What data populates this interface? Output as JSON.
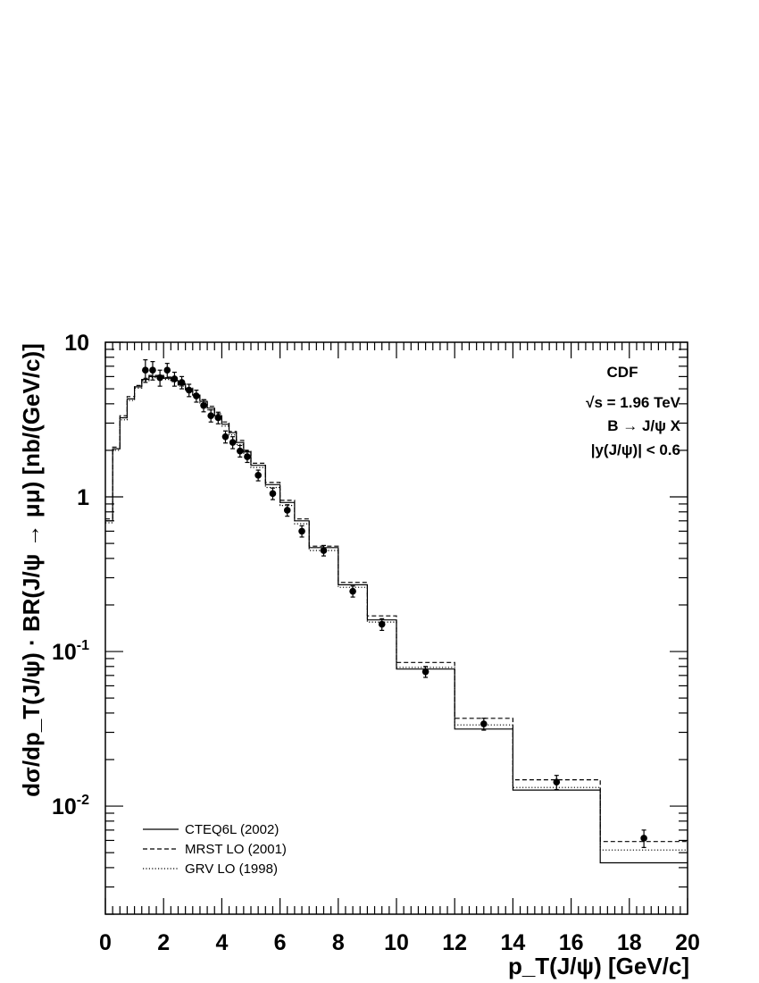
{
  "chart_data": {
    "type": "line",
    "xlabel": "p_T(J/ψ) [GeV/c]",
    "ylabel": "dσ/dp_T(J/ψ) · BR(J/ψ → μμ) [nb/(GeV/c)]",
    "xlim": [
      0,
      20
    ],
    "ylim": [
      0.002,
      10
    ],
    "yscale": "log",
    "x_ticks": [
      "0",
      "2",
      "4",
      "6",
      "8",
      "10",
      "12",
      "14",
      "16",
      "18",
      "20"
    ],
    "y_ticks": [
      {
        "value": 10,
        "base": "10",
        "exp": ""
      },
      {
        "value": 1,
        "base": "1",
        "exp": ""
      },
      {
        "value": 0.1,
        "base": "10",
        "exp": "-1"
      },
      {
        "value": 0.01,
        "base": "10",
        "exp": "-2"
      }
    ],
    "annotations": [
      "CDF",
      "√s = 1.96 TeV",
      "B → J/ψ X",
      "|y(J/ψ)| < 0.6"
    ],
    "bin_edges": [
      0,
      0.25,
      0.5,
      0.75,
      1.0,
      1.25,
      1.5,
      1.75,
      2.0,
      2.25,
      2.5,
      2.75,
      3.0,
      3.25,
      3.5,
      3.75,
      4.0,
      4.25,
      4.5,
      4.75,
      5.0,
      5.5,
      6.0,
      6.5,
      7.0,
      8.0,
      9.0,
      10.0,
      12.0,
      14.0,
      17.0,
      20.0
    ],
    "series": [
      {
        "name": "CTEQ6L (2002)",
        "style": "solid",
        "values": [
          0.7,
          2.05,
          3.25,
          4.3,
          5.15,
          5.75,
          6.0,
          6.0,
          5.85,
          5.65,
          5.3,
          4.95,
          4.55,
          4.15,
          3.75,
          3.35,
          2.95,
          2.6,
          2.25,
          1.95,
          1.6,
          1.2,
          0.92,
          0.7,
          0.47,
          0.27,
          0.16,
          0.077,
          0.0315,
          0.0127,
          0.0043
        ]
      },
      {
        "name": "MRST LO (2001)",
        "style": "dashed",
        "values": [
          0.72,
          2.1,
          3.35,
          4.45,
          5.25,
          5.85,
          6.1,
          6.1,
          5.95,
          5.75,
          5.4,
          5.05,
          4.65,
          4.25,
          3.85,
          3.45,
          3.05,
          2.65,
          2.32,
          2.0,
          1.65,
          1.24,
          0.95,
          0.72,
          0.48,
          0.28,
          0.17,
          0.085,
          0.037,
          0.0148,
          0.0059
        ]
      },
      {
        "name": "GRV LO (1998)",
        "style": "dotted",
        "values": [
          0.68,
          2.0,
          3.15,
          4.2,
          5.05,
          5.65,
          5.9,
          5.9,
          5.75,
          5.55,
          5.2,
          4.85,
          4.45,
          4.05,
          3.65,
          3.25,
          2.87,
          2.52,
          2.18,
          1.88,
          1.55,
          1.15,
          0.88,
          0.67,
          0.45,
          0.26,
          0.155,
          0.079,
          0.0335,
          0.0132,
          0.0052
        ]
      }
    ],
    "data_points": [
      {
        "x": 1.375,
        "y": 6.6,
        "err": 1.1
      },
      {
        "x": 1.625,
        "y": 6.6,
        "err": 0.9
      },
      {
        "x": 1.875,
        "y": 5.9,
        "err": 0.7
      },
      {
        "x": 2.125,
        "y": 6.6,
        "err": 0.7
      },
      {
        "x": 2.375,
        "y": 5.8,
        "err": 0.6
      },
      {
        "x": 2.625,
        "y": 5.5,
        "err": 0.5
      },
      {
        "x": 2.875,
        "y": 4.9,
        "err": 0.45
      },
      {
        "x": 3.125,
        "y": 4.5,
        "err": 0.4
      },
      {
        "x": 3.375,
        "y": 3.9,
        "err": 0.35
      },
      {
        "x": 3.625,
        "y": 3.35,
        "err": 0.3
      },
      {
        "x": 3.875,
        "y": 3.25,
        "err": 0.28
      },
      {
        "x": 4.125,
        "y": 2.45,
        "err": 0.22
      },
      {
        "x": 4.375,
        "y": 2.25,
        "err": 0.2
      },
      {
        "x": 4.625,
        "y": 1.98,
        "err": 0.17
      },
      {
        "x": 4.875,
        "y": 1.82,
        "err": 0.15
      },
      {
        "x": 5.25,
        "y": 1.38,
        "err": 0.11
      },
      {
        "x": 5.75,
        "y": 1.05,
        "err": 0.09
      },
      {
        "x": 6.25,
        "y": 0.82,
        "err": 0.07
      },
      {
        "x": 6.75,
        "y": 0.6,
        "err": 0.05
      },
      {
        "x": 7.5,
        "y": 0.45,
        "err": 0.035
      },
      {
        "x": 8.5,
        "y": 0.245,
        "err": 0.02
      },
      {
        "x": 9.5,
        "y": 0.15,
        "err": 0.013
      },
      {
        "x": 11.0,
        "y": 0.074,
        "err": 0.006
      },
      {
        "x": 13.0,
        "y": 0.034,
        "err": 0.003
      },
      {
        "x": 15.5,
        "y": 0.0143,
        "err": 0.0015
      },
      {
        "x": 18.5,
        "y": 0.0062,
        "err": 0.0008
      }
    ]
  }
}
